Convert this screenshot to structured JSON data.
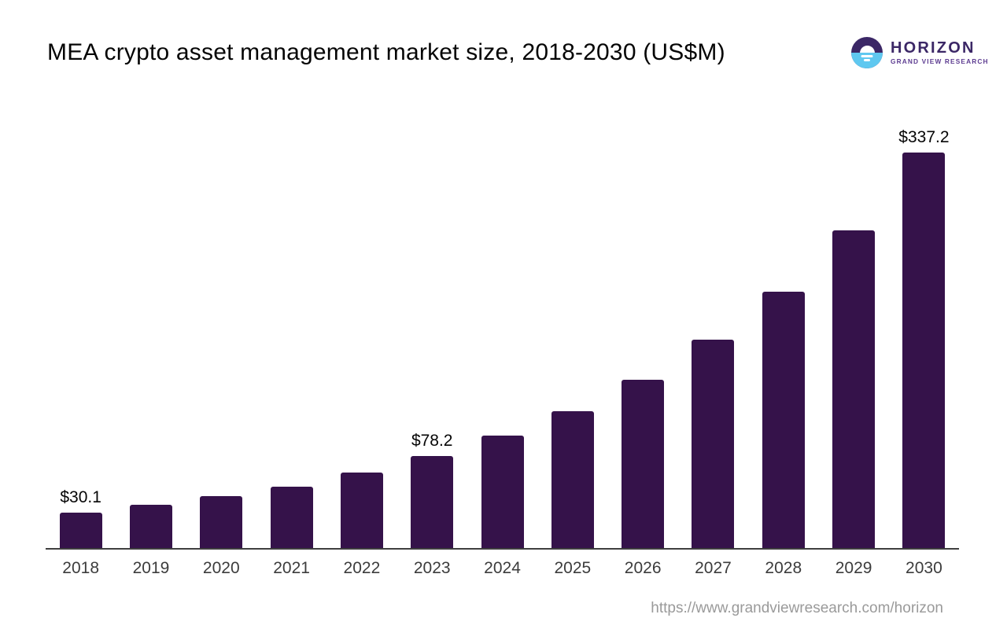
{
  "title": "MEA crypto asset management market size, 2018-2030 (US$M)",
  "logo": {
    "brand": "HORIZON",
    "subtitle": "GRAND VIEW RESEARCH",
    "icon": "horizon-sun-over-water-icon"
  },
  "footer": {
    "source_url": "https://www.grandviewresearch.com/horizon"
  },
  "colors": {
    "bar": "#35124a",
    "axis": "#3f3f3f",
    "tick_label": "#3c3c3c",
    "value_label": "#050505",
    "title": "#050505",
    "url": "#9a9a9a",
    "logo_dark_purple": "#3b2766",
    "logo_light_blue": "#5fc8f0",
    "logo_sub_purple": "#5d3c91"
  },
  "chart_data": {
    "type": "bar",
    "title": "MEA crypto asset management market size, 2018-2030 (US$M)",
    "xlabel": "",
    "ylabel": "",
    "categories": [
      "2018",
      "2019",
      "2020",
      "2021",
      "2022",
      "2023",
      "2024",
      "2025",
      "2026",
      "2027",
      "2028",
      "2029",
      "2030"
    ],
    "values": [
      30.1,
      36.9,
      44.2,
      52.3,
      64.4,
      78.2,
      95.9,
      116.6,
      143.5,
      177.7,
      218.5,
      270.8,
      337.2
    ],
    "data_labels": [
      "$30.1",
      null,
      null,
      null,
      null,
      "$78.2",
      null,
      null,
      null,
      null,
      null,
      null,
      "$337.2"
    ],
    "unit": "US$M",
    "ylim": [
      0,
      360
    ],
    "grid": false,
    "legend": "none",
    "bar_color": "#35124a"
  }
}
